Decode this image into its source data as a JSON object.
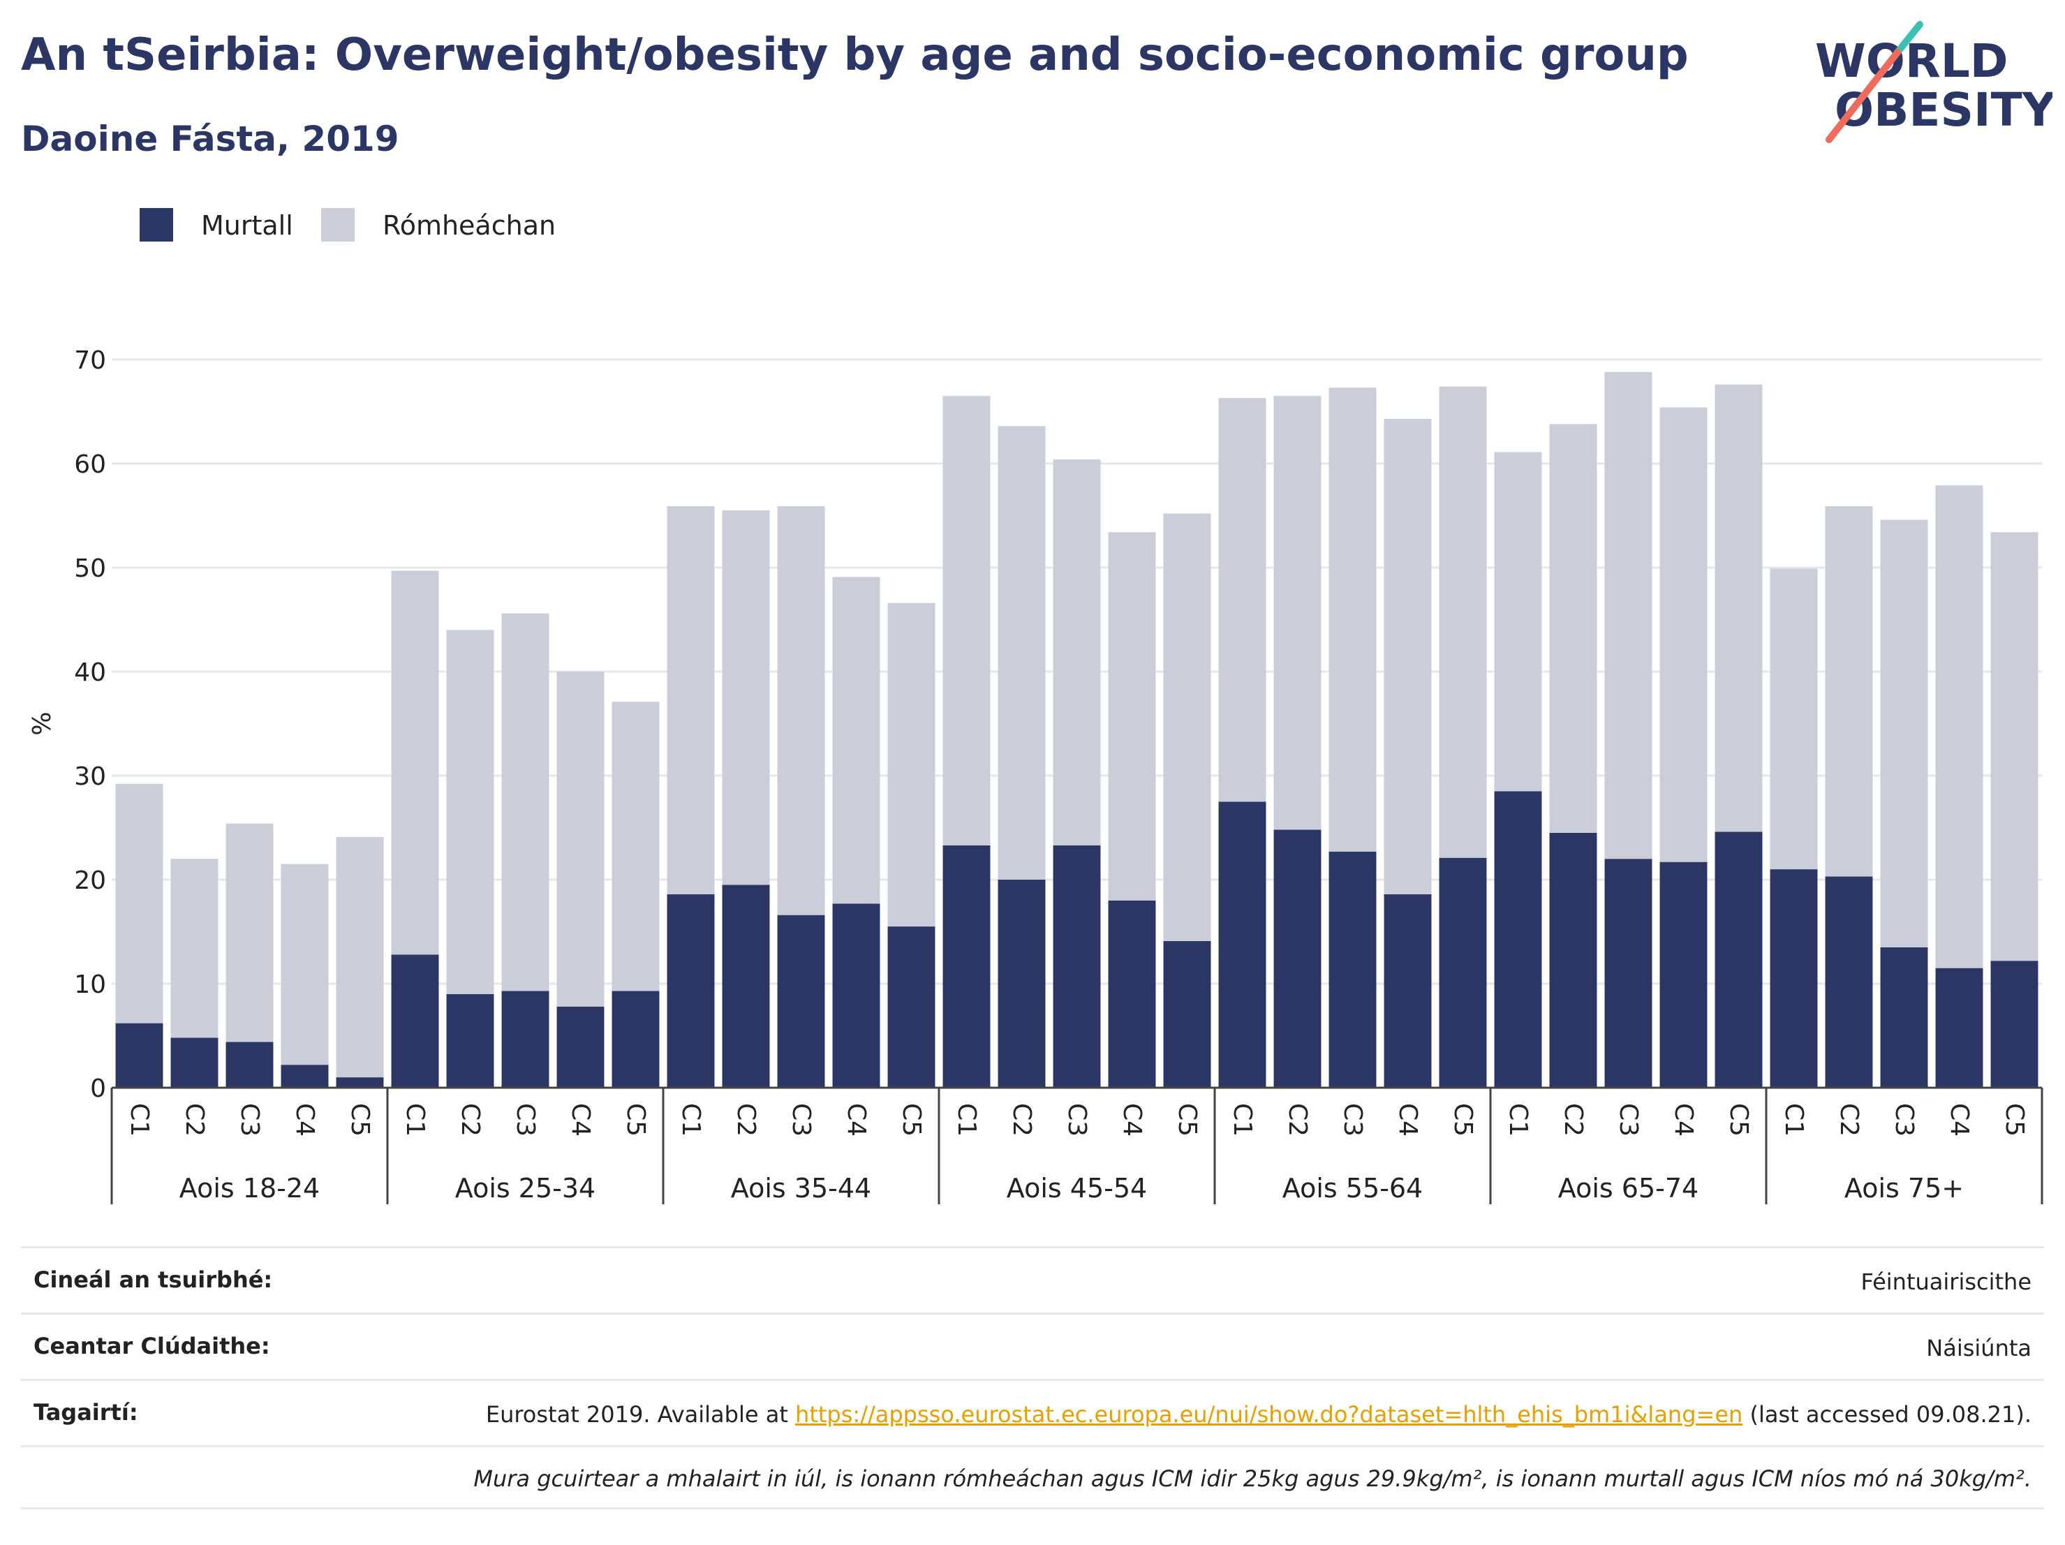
{
  "header": {
    "title": "An tSeirbia: Overweight/obesity by age and socio-economic group",
    "subtitle": "Daoine Fásta, 2019"
  },
  "logo": {
    "line1": "WORLD",
    "line2": "OBESITY",
    "accent_teal": "#3cc0b4",
    "accent_coral": "#ef6b5b",
    "color": "#2b3664"
  },
  "chart_data": {
    "type": "bar",
    "stacked": true,
    "ylabel": "%",
    "ylim": [
      0,
      70
    ],
    "yticks": [
      0,
      10,
      20,
      30,
      40,
      50,
      60,
      70
    ],
    "grid": true,
    "legend_position": "top-left",
    "groups": [
      "Aois 18-24",
      "Aois 25-34",
      "Aois 35-44",
      "Aois 45-54",
      "Aois 55-64",
      "Aois 65-74",
      "Aois 75+"
    ],
    "subcategories": [
      "C1",
      "C2",
      "C3",
      "C4",
      "C5"
    ],
    "series": [
      {
        "name": "Murtall",
        "color": "#2b3664",
        "values": [
          6.2,
          4.8,
          4.4,
          2.2,
          1.0,
          12.8,
          9.0,
          9.3,
          7.8,
          9.3,
          18.6,
          19.5,
          16.6,
          17.7,
          15.5,
          23.3,
          20.0,
          23.3,
          18.0,
          14.1,
          27.5,
          24.8,
          22.7,
          18.6,
          22.1,
          28.5,
          24.5,
          22.0,
          21.7,
          24.6,
          21.0,
          20.3,
          13.5,
          11.5,
          12.2
        ]
      },
      {
        "name": "Rómheáchan",
        "color": "#cbcdd9",
        "values": [
          23.0,
          17.2,
          21.0,
          19.3,
          23.1,
          36.9,
          35.0,
          36.3,
          32.2,
          27.8,
          37.3,
          36.0,
          39.3,
          31.4,
          31.1,
          43.2,
          43.6,
          37.1,
          35.4,
          41.1,
          38.8,
          41.7,
          44.6,
          45.7,
          45.3,
          32.6,
          39.3,
          46.8,
          43.7,
          43.0,
          28.9,
          35.6,
          41.1,
          46.4,
          41.2
        ]
      }
    ]
  },
  "footer": {
    "rows": [
      {
        "label": "Cineál an tsuirbhé:",
        "value": "Féintuairiscithe"
      },
      {
        "label": "Ceantar Clúdaithe:",
        "value": "Náisiúnta"
      }
    ],
    "reference": {
      "label": "Tagairtí:",
      "prefix": "Eurostat 2019. Available at ",
      "link": "https://appsso.eurostat.ec.europa.eu/nui/show.do?dataset=hlth_ehis_bm1i&lang=en",
      "suffix": " (last accessed 09.08.21)."
    },
    "note": "Mura gcuirtear a mhalairt in iúl, is ionann rómheáchan agus ICM idir 25kg agus 29.9kg/m², is ionann murtall agus ICM níos mó ná 30kg/m²."
  }
}
